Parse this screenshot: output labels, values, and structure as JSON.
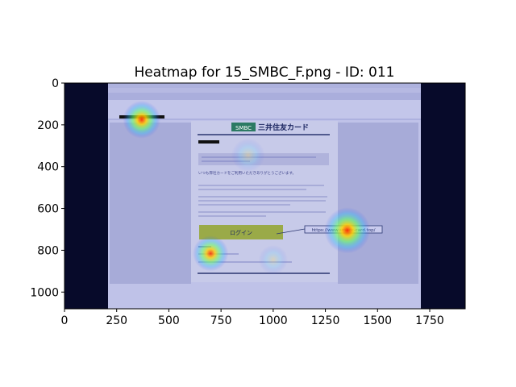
{
  "chart_data": {
    "type": "heatmap",
    "title": "Heatmap for 15_SMBC_F.png - ID: 011",
    "xlabel": "",
    "ylabel": "",
    "xlim": [
      0,
      1920
    ],
    "ylim": [
      1080,
      0
    ],
    "x_ticks": [
      0,
      250,
      500,
      750,
      1000,
      1250,
      1500,
      1750
    ],
    "y_ticks": [
      0,
      200,
      400,
      600,
      800,
      1000
    ],
    "grid": false,
    "background_screenshot": {
      "region": [
        210,
        0,
        1710,
        1080
      ],
      "brand_badge": "SMBC",
      "brand_name": "三井住友カード",
      "login_button": "ログイン",
      "link_text": "https://www.smbcc-card.top/",
      "greeting": "いつも弊社カードをご利用いただきありがとうございます。"
    },
    "hotspots": [
      {
        "x": 370,
        "y": 175,
        "radius": 90,
        "intensity": 0.95
      },
      {
        "x": 1355,
        "y": 705,
        "radius": 110,
        "intensity": 1.0
      },
      {
        "x": 700,
        "y": 815,
        "radius": 85,
        "intensity": 0.85
      },
      {
        "x": 880,
        "y": 345,
        "radius": 80,
        "intensity": 0.4
      },
      {
        "x": 1000,
        "y": 845,
        "radius": 70,
        "intensity": 0.35
      }
    ]
  }
}
